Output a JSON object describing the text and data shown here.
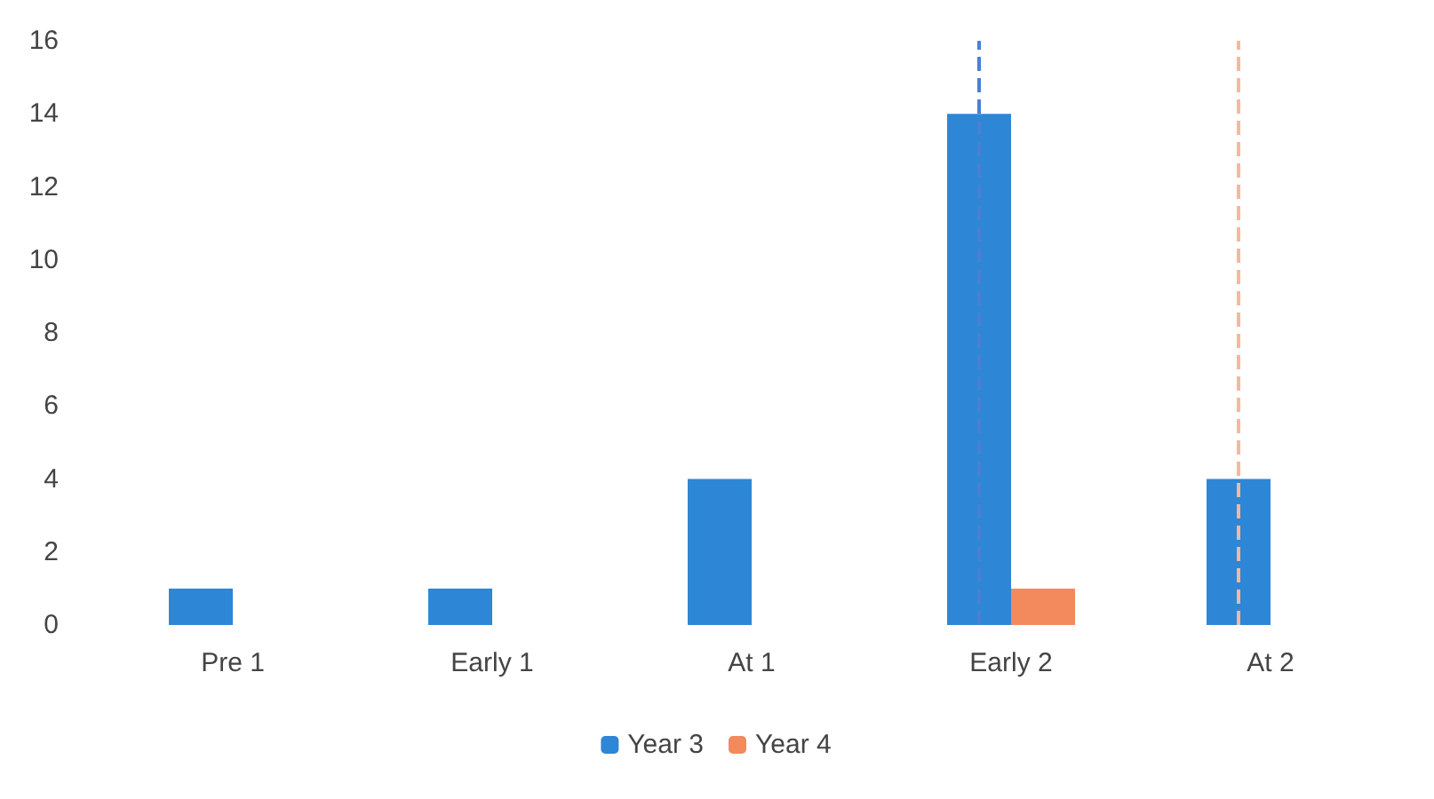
{
  "chart_data": {
    "type": "bar",
    "categories": [
      "Pre 1",
      "Early 1",
      "At 1",
      "Early 2",
      "At 2"
    ],
    "series": [
      {
        "name": "Year 3",
        "color": "#2e86d6",
        "values": [
          1,
          1,
          4,
          14,
          4
        ]
      },
      {
        "name": "Year 4",
        "color": "#f28a5e",
        "values": [
          null,
          null,
          null,
          1,
          null
        ]
      }
    ],
    "ylim": [
      0,
      16
    ],
    "yticks": [
      0,
      2,
      4,
      6,
      8,
      10,
      12,
      14,
      16
    ],
    "grid": false,
    "legend": "bottom",
    "ref_lines": [
      {
        "axis": "x",
        "value": "Early 2",
        "color": "#4a7fd4",
        "line_style": "dashed"
      },
      {
        "axis": "x",
        "value": "At 2",
        "color": "#f5b89c",
        "line_style": "dashed"
      }
    ]
  }
}
